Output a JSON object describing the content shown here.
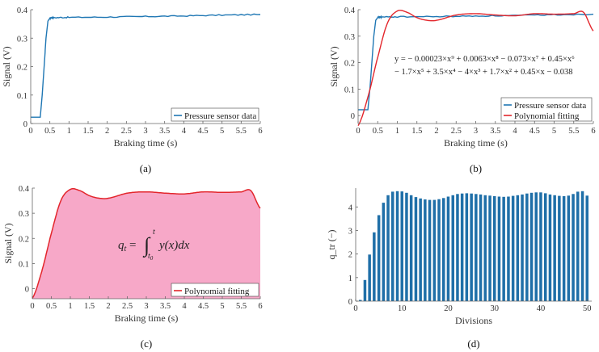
{
  "colors": {
    "sensor": "#1f77b4",
    "poly": "#e3262c",
    "fill": "#f7a8c8",
    "bar": "#1f6fa8"
  },
  "chart_data": [
    {
      "panel": "a",
      "type": "line",
      "panel_label": "(a)",
      "xlabel": "Braking time (s)",
      "ylabel": "Signal (V)",
      "xlim": [
        0,
        6
      ],
      "ylim": [
        0,
        0.4
      ],
      "xticks": [
        "0",
        "0.5",
        "1",
        "1.5",
        "2",
        "2.5",
        "3",
        "3.5",
        "4",
        "4.5",
        "5",
        "5.5",
        "6"
      ],
      "yticks": [
        "0",
        "0.1",
        "0.2",
        "0.3",
        "0.4"
      ],
      "legend": [
        "Pressure sensor data"
      ],
      "series": [
        {
          "name": "Pressure sensor data",
          "x": [
            0,
            0.25,
            0.3,
            0.35,
            0.4,
            0.45,
            0.5,
            0.55,
            0.6,
            1,
            2,
            3,
            4,
            5,
            6
          ],
          "y": [
            0.022,
            0.022,
            0.1,
            0.2,
            0.3,
            0.36,
            0.37,
            0.372,
            0.372,
            0.373,
            0.374,
            0.376,
            0.378,
            0.381,
            0.383
          ]
        }
      ]
    },
    {
      "panel": "b",
      "type": "line",
      "panel_label": "(b)",
      "xlabel": "Braking time (s)",
      "ylabel": "Signal (V)",
      "xlim": [
        0,
        6
      ],
      "ylim": [
        -0.03,
        0.4
      ],
      "xticks": [
        "0",
        "0.5",
        "1",
        "1.5",
        "2",
        "2.5",
        "3",
        "3.5",
        "4",
        "4.5",
        "5",
        "5.5",
        "6"
      ],
      "yticks": [
        "0",
        "0.1",
        "0.2",
        "0.3",
        "0.4"
      ],
      "equation_line1": "y = − 0.00023×x⁹ + 0.0063×x⁸ − 0.073×x⁷ + 0.45×x⁶",
      "equation_line2": "− 1.7×x⁵ + 3.5×x⁴ − 4×x³ + 1.7×x² + 0.45×x − 0.038",
      "legend": [
        "Pressure sensor data",
        "Polynomial fitting"
      ],
      "series": [
        {
          "name": "Pressure sensor data",
          "x": [
            0,
            0.25,
            0.3,
            0.35,
            0.4,
            0.45,
            0.5,
            0.55,
            0.6,
            1,
            2,
            3,
            4,
            5,
            6
          ],
          "y": [
            0.022,
            0.022,
            0.1,
            0.2,
            0.3,
            0.36,
            0.37,
            0.372,
            0.372,
            0.373,
            0.374,
            0.376,
            0.378,
            0.381,
            0.383
          ]
        },
        {
          "name": "Polynomial fitting",
          "x": [
            0,
            0.25,
            0.5,
            0.75,
            1,
            1.25,
            1.5,
            1.75,
            2,
            2.5,
            3,
            3.5,
            4,
            4.5,
            5,
            5.5,
            5.75,
            6
          ],
          "y": [
            -0.038,
            0.07,
            0.22,
            0.35,
            0.395,
            0.39,
            0.37,
            0.36,
            0.36,
            0.38,
            0.385,
            0.38,
            0.377,
            0.385,
            0.383,
            0.385,
            0.39,
            0.32
          ]
        }
      ]
    },
    {
      "panel": "c",
      "type": "area",
      "panel_label": "(c)",
      "xlabel": "Braking time (s)",
      "ylabel": "Signal (V)",
      "xlim": [
        0,
        6
      ],
      "ylim": [
        -0.04,
        0.4
      ],
      "xticks": [
        "0",
        "0.5",
        "1",
        "1.5",
        "2",
        "2.5",
        "3",
        "3.5",
        "4",
        "4.5",
        "5",
        "5.5",
        "6"
      ],
      "yticks": [
        "0",
        "0.1",
        "0.2",
        "0.3",
        "0.4"
      ],
      "annotation": "q_t = ∫_{t0}^{t} y(x)dx",
      "legend": [
        "Polynomial fitting"
      ],
      "series": [
        {
          "name": "Polynomial fitting",
          "x": [
            0,
            0.25,
            0.5,
            0.75,
            1,
            1.25,
            1.5,
            1.75,
            2,
            2.5,
            3,
            3.5,
            4,
            4.5,
            5,
            5.5,
            5.75,
            6
          ],
          "y": [
            -0.038,
            0.07,
            0.22,
            0.35,
            0.395,
            0.39,
            0.37,
            0.36,
            0.36,
            0.38,
            0.385,
            0.38,
            0.377,
            0.385,
            0.383,
            0.385,
            0.39,
            0.32
          ]
        }
      ]
    },
    {
      "panel": "d",
      "type": "bar",
      "panel_label": "(d)",
      "xlabel": "Divisions",
      "ylabel": "q_tr (−)",
      "xlim": [
        0,
        51
      ],
      "ylim": [
        0,
        4.8
      ],
      "xticks": [
        "0",
        "10",
        "20",
        "30",
        "40",
        "50"
      ],
      "yticks": [
        "0",
        "1",
        "2",
        "3",
        "4"
      ],
      "categories": [
        1,
        2,
        3,
        4,
        5,
        6,
        7,
        8,
        9,
        10,
        11,
        12,
        13,
        14,
        15,
        16,
        17,
        18,
        19,
        20,
        21,
        22,
        23,
        24,
        25,
        26,
        27,
        28,
        29,
        30,
        31,
        32,
        33,
        34,
        35,
        36,
        37,
        38,
        39,
        40,
        41,
        42,
        43,
        44,
        45,
        46,
        47,
        48,
        49,
        50
      ],
      "values": [
        0.05,
        0.9,
        1.98,
        2.92,
        3.65,
        4.18,
        4.5,
        4.65,
        4.67,
        4.66,
        4.6,
        4.5,
        4.42,
        4.36,
        4.32,
        4.3,
        4.3,
        4.33,
        4.38,
        4.44,
        4.5,
        4.55,
        4.57,
        4.58,
        4.57,
        4.55,
        4.53,
        4.5,
        4.48,
        4.46,
        4.44,
        4.43,
        4.44,
        4.47,
        4.5,
        4.53,
        4.57,
        4.6,
        4.62,
        4.62,
        4.58,
        4.53,
        4.5,
        4.47,
        4.46,
        4.48,
        4.55,
        4.65,
        4.67,
        4.48
      ]
    }
  ]
}
